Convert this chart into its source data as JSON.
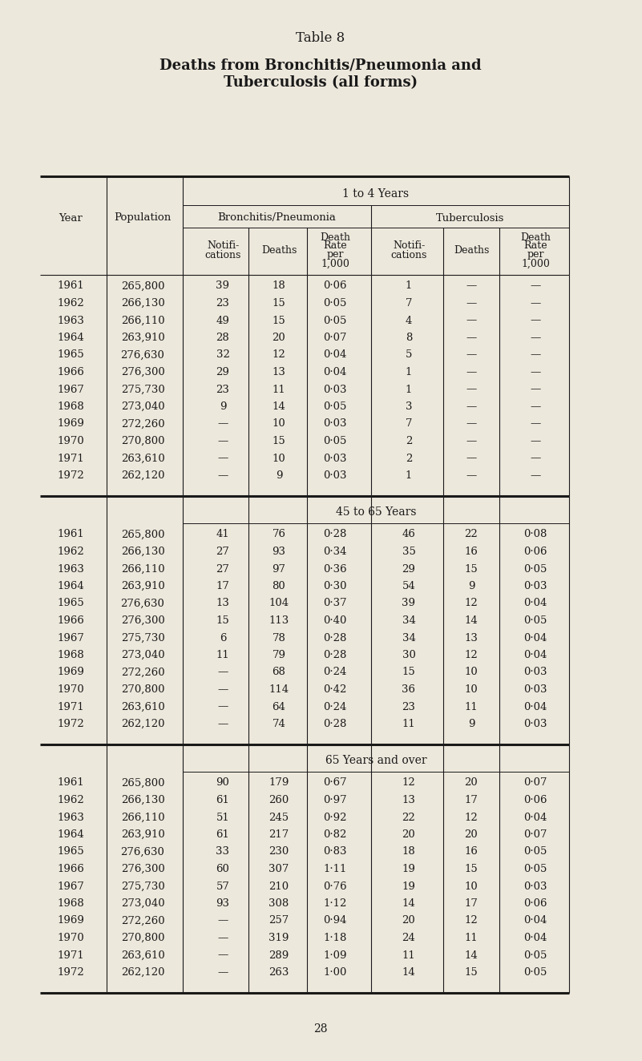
{
  "title": "Table 8",
  "subtitle_line1": "Deaths from Bronchitis/Pneumonia and",
  "subtitle_line2": "Tuberculosis (all forms)",
  "background_color": "#ede8dc",
  "text_color": "#1a1a1a",
  "page_number": "28",
  "sections": [
    {
      "label": "1 to 4 Years",
      "rows": [
        {
          "year": "1961",
          "pop": "265,800",
          "bp_notif": "39",
          "bp_deaths": "18",
          "bp_rate": "0·06",
          "tb_notif": "1",
          "tb_deaths": "—",
          "tb_rate": "—"
        },
        {
          "year": "1962",
          "pop": "266,130",
          "bp_notif": "23",
          "bp_deaths": "15",
          "bp_rate": "0·05",
          "tb_notif": "7",
          "tb_deaths": "—",
          "tb_rate": "—"
        },
        {
          "year": "1963",
          "pop": "266,110",
          "bp_notif": "49",
          "bp_deaths": "15",
          "bp_rate": "0·05",
          "tb_notif": "4",
          "tb_deaths": "—",
          "tb_rate": "—"
        },
        {
          "year": "1964",
          "pop": "263,910",
          "bp_notif": "28",
          "bp_deaths": "20",
          "bp_rate": "0·07",
          "tb_notif": "8",
          "tb_deaths": "—",
          "tb_rate": "—"
        },
        {
          "year": "1965",
          "pop": "276,630",
          "bp_notif": "32",
          "bp_deaths": "12",
          "bp_rate": "0·04",
          "tb_notif": "5",
          "tb_deaths": "—",
          "tb_rate": "—"
        },
        {
          "year": "1966",
          "pop": "276,300",
          "bp_notif": "29",
          "bp_deaths": "13",
          "bp_rate": "0·04",
          "tb_notif": "1",
          "tb_deaths": "—",
          "tb_rate": "—"
        },
        {
          "year": "1967",
          "pop": "275,730",
          "bp_notif": "23",
          "bp_deaths": "11",
          "bp_rate": "0·03",
          "tb_notif": "1",
          "tb_deaths": "—",
          "tb_rate": "—"
        },
        {
          "year": "1968",
          "pop": "273,040",
          "bp_notif": "9",
          "bp_deaths": "14",
          "bp_rate": "0·05",
          "tb_notif": "3",
          "tb_deaths": "—",
          "tb_rate": "—"
        },
        {
          "year": "1969",
          "pop": "272,260",
          "bp_notif": "—",
          "bp_deaths": "10",
          "bp_rate": "0·03",
          "tb_notif": "7",
          "tb_deaths": "—",
          "tb_rate": "—"
        },
        {
          "year": "1970",
          "pop": "270,800",
          "bp_notif": "—",
          "bp_deaths": "15",
          "bp_rate": "0·05",
          "tb_notif": "2",
          "tb_deaths": "—",
          "tb_rate": "—"
        },
        {
          "year": "1971",
          "pop": "263,610",
          "bp_notif": "—",
          "bp_deaths": "10",
          "bp_rate": "0·03",
          "tb_notif": "2",
          "tb_deaths": "—",
          "tb_rate": "—"
        },
        {
          "year": "1972",
          "pop": "262,120",
          "bp_notif": "—",
          "bp_deaths": "9",
          "bp_rate": "0·03",
          "tb_notif": "1",
          "tb_deaths": "—",
          "tb_rate": "—"
        }
      ]
    },
    {
      "label": "45 to 65 Years",
      "rows": [
        {
          "year": "1961",
          "pop": "265,800",
          "bp_notif": "41",
          "bp_deaths": "76",
          "bp_rate": "0·28",
          "tb_notif": "46",
          "tb_deaths": "22",
          "tb_rate": "0·08"
        },
        {
          "year": "1962",
          "pop": "266,130",
          "bp_notif": "27",
          "bp_deaths": "93",
          "bp_rate": "0·34",
          "tb_notif": "35",
          "tb_deaths": "16",
          "tb_rate": "0·06"
        },
        {
          "year": "1963",
          "pop": "266,110",
          "bp_notif": "27",
          "bp_deaths": "97",
          "bp_rate": "0·36",
          "tb_notif": "29",
          "tb_deaths": "15",
          "tb_rate": "0·05"
        },
        {
          "year": "1964",
          "pop": "263,910",
          "bp_notif": "17",
          "bp_deaths": "80",
          "bp_rate": "0·30",
          "tb_notif": "54",
          "tb_deaths": "9",
          "tb_rate": "0·03"
        },
        {
          "year": "1965",
          "pop": "276,630",
          "bp_notif": "13",
          "bp_deaths": "104",
          "bp_rate": "0·37",
          "tb_notif": "39",
          "tb_deaths": "12",
          "tb_rate": "0·04"
        },
        {
          "year": "1966",
          "pop": "276,300",
          "bp_notif": "15",
          "bp_deaths": "113",
          "bp_rate": "0·40",
          "tb_notif": "34",
          "tb_deaths": "14",
          "tb_rate": "0·05"
        },
        {
          "year": "1967",
          "pop": "275,730",
          "bp_notif": "6",
          "bp_deaths": "78",
          "bp_rate": "0·28",
          "tb_notif": "34",
          "tb_deaths": "13",
          "tb_rate": "0·04"
        },
        {
          "year": "1968",
          "pop": "273,040",
          "bp_notif": "11",
          "bp_deaths": "79",
          "bp_rate": "0·28",
          "tb_notif": "30",
          "tb_deaths": "12",
          "tb_rate": "0·04"
        },
        {
          "year": "1969",
          "pop": "272,260",
          "bp_notif": "—",
          "bp_deaths": "68",
          "bp_rate": "0·24",
          "tb_notif": "15",
          "tb_deaths": "10",
          "tb_rate": "0·03"
        },
        {
          "year": "1970",
          "pop": "270,800",
          "bp_notif": "—",
          "bp_deaths": "114",
          "bp_rate": "0·42",
          "tb_notif": "36",
          "tb_deaths": "10",
          "tb_rate": "0·03"
        },
        {
          "year": "1971",
          "pop": "263,610",
          "bp_notif": "—",
          "bp_deaths": "64",
          "bp_rate": "0·24",
          "tb_notif": "23",
          "tb_deaths": "11",
          "tb_rate": "0·04"
        },
        {
          "year": "1972",
          "pop": "262,120",
          "bp_notif": "—",
          "bp_deaths": "74",
          "bp_rate": "0·28",
          "tb_notif": "11",
          "tb_deaths": "9",
          "tb_rate": "0·03"
        }
      ]
    },
    {
      "label": "65 Years and over",
      "rows": [
        {
          "year": "1961",
          "pop": "265,800",
          "bp_notif": "90",
          "bp_deaths": "179",
          "bp_rate": "0·67",
          "tb_notif": "12",
          "tb_deaths": "20",
          "tb_rate": "0·07"
        },
        {
          "year": "1962",
          "pop": "266,130",
          "bp_notif": "61",
          "bp_deaths": "260",
          "bp_rate": "0·97",
          "tb_notif": "13",
          "tb_deaths": "17",
          "tb_rate": "0·06"
        },
        {
          "year": "1963",
          "pop": "266,110",
          "bp_notif": "51",
          "bp_deaths": "245",
          "bp_rate": "0·92",
          "tb_notif": "22",
          "tb_deaths": "12",
          "tb_rate": "0·04"
        },
        {
          "year": "1964",
          "pop": "263,910",
          "bp_notif": "61",
          "bp_deaths": "217",
          "bp_rate": "0·82",
          "tb_notif": "20",
          "tb_deaths": "20",
          "tb_rate": "0·07"
        },
        {
          "year": "1965",
          "pop": "276,630",
          "bp_notif": "33",
          "bp_deaths": "230",
          "bp_rate": "0·83",
          "tb_notif": "18",
          "tb_deaths": "16",
          "tb_rate": "0·05"
        },
        {
          "year": "1966",
          "pop": "276,300",
          "bp_notif": "60",
          "bp_deaths": "307",
          "bp_rate": "1·11",
          "tb_notif": "19",
          "tb_deaths": "15",
          "tb_rate": "0·05"
        },
        {
          "year": "1967",
          "pop": "275,730",
          "bp_notif": "57",
          "bp_deaths": "210",
          "bp_rate": "0·76",
          "tb_notif": "19",
          "tb_deaths": "10",
          "tb_rate": "0·03"
        },
        {
          "year": "1968",
          "pop": "273,040",
          "bp_notif": "93",
          "bp_deaths": "308",
          "bp_rate": "1·12",
          "tb_notif": "14",
          "tb_deaths": "17",
          "tb_rate": "0·06"
        },
        {
          "year": "1969",
          "pop": "272,260",
          "bp_notif": "—",
          "bp_deaths": "257",
          "bp_rate": "0·94",
          "tb_notif": "20",
          "tb_deaths": "12",
          "tb_rate": "0·04"
        },
        {
          "year": "1970",
          "pop": "270,800",
          "bp_notif": "—",
          "bp_deaths": "319",
          "bp_rate": "1·18",
          "tb_notif": "24",
          "tb_deaths": "11",
          "tb_rate": "0·04"
        },
        {
          "year": "1971",
          "pop": "263,610",
          "bp_notif": "—",
          "bp_deaths": "289",
          "bp_rate": "1·09",
          "tb_notif": "11",
          "tb_deaths": "14",
          "tb_rate": "0·05"
        },
        {
          "year": "1972",
          "pop": "262,120",
          "bp_notif": "—",
          "bp_deaths": "263",
          "bp_rate": "1·00",
          "tb_notif": "14",
          "tb_deaths": "15",
          "tb_rate": "0·05"
        }
      ]
    }
  ]
}
